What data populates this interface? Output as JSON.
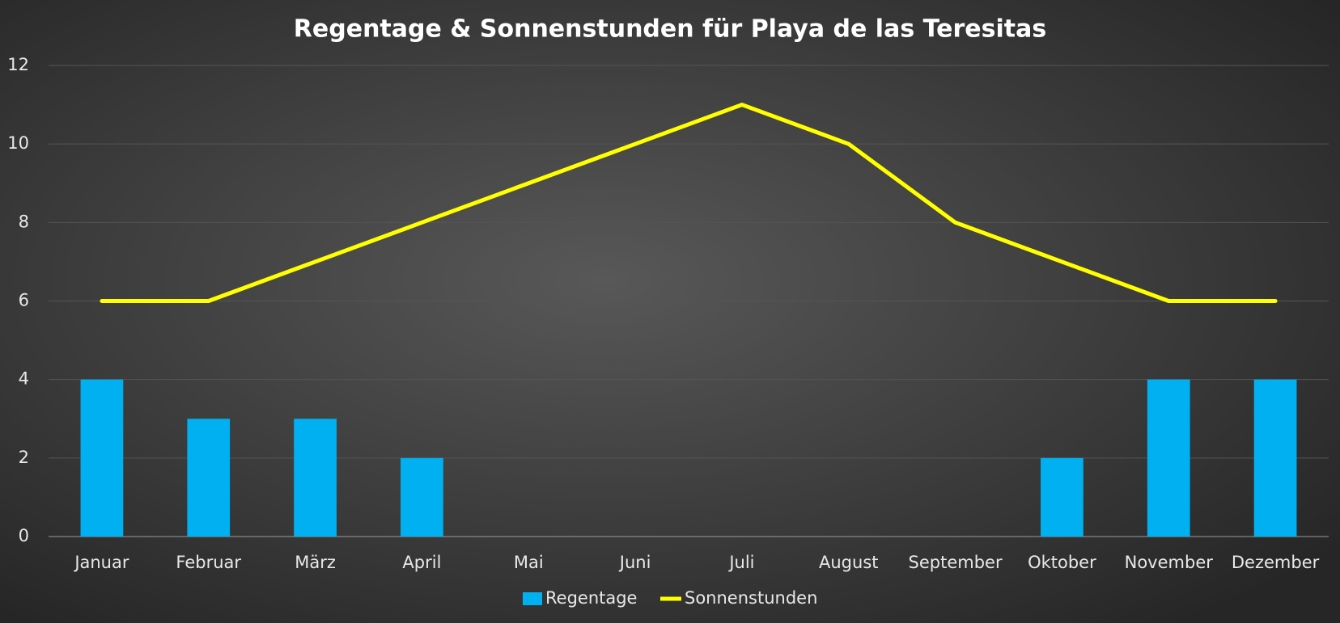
{
  "chart_data": {
    "type": "bar",
    "title": "Regentage & Sonnenstunden für Playa de las Teresitas",
    "categories": [
      "Januar",
      "Februar",
      "März",
      "April",
      "Mai",
      "Juni",
      "Juli",
      "August",
      "September",
      "Oktober",
      "November",
      "Dezember"
    ],
    "series": [
      {
        "name": "Regentage",
        "type": "bar",
        "color": "#00b0f0",
        "values": [
          4,
          3,
          3,
          2,
          0,
          0,
          0,
          0,
          0,
          2,
          4,
          4
        ]
      },
      {
        "name": "Sonnenstunden",
        "type": "line",
        "color": "#ffff00",
        "values": [
          6,
          6,
          7,
          8,
          9,
          10,
          11,
          10,
          8,
          7,
          6,
          6
        ]
      }
    ],
    "ylim": [
      0,
      12
    ],
    "yticks": [
      0,
      2,
      4,
      6,
      8,
      10,
      12
    ],
    "grid": true,
    "legend": "bottom"
  }
}
